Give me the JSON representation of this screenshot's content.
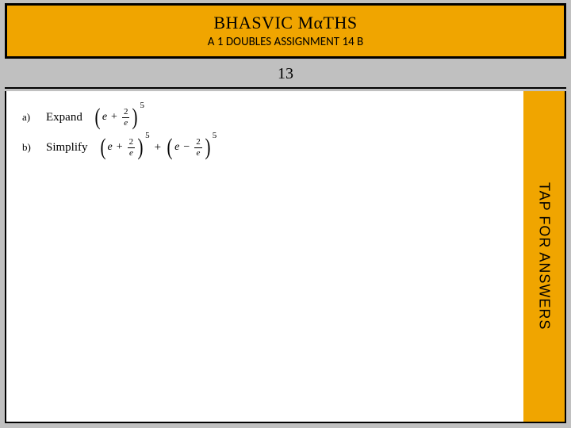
{
  "header": {
    "title": "BHASVIC MαTHS",
    "subtitle": "A 1 DOUBLES ASSIGNMENT 14 B"
  },
  "question_number": "13",
  "questions": {
    "a": {
      "label": "a)",
      "verb": "Expand",
      "expr1": {
        "left_var": "e",
        "op": "+",
        "frac_num": "2",
        "frac_den": "e",
        "power": "5"
      }
    },
    "b": {
      "label": "b)",
      "verb": "Simplify",
      "expr1": {
        "left_var": "e",
        "op": "+",
        "frac_num": "2",
        "frac_den": "e",
        "power": "5"
      },
      "joiner": "+",
      "expr2": {
        "left_var": "e",
        "op": "−",
        "frac_num": "2",
        "frac_den": "e",
        "power": "5"
      }
    }
  },
  "answers_tab": {
    "label": "TAP FOR ANSWERS"
  },
  "colors": {
    "page_bg": "#c0c0c0",
    "accent": "#f0a500",
    "content_bg": "#ffffff",
    "border": "#000000",
    "text": "#000000"
  }
}
